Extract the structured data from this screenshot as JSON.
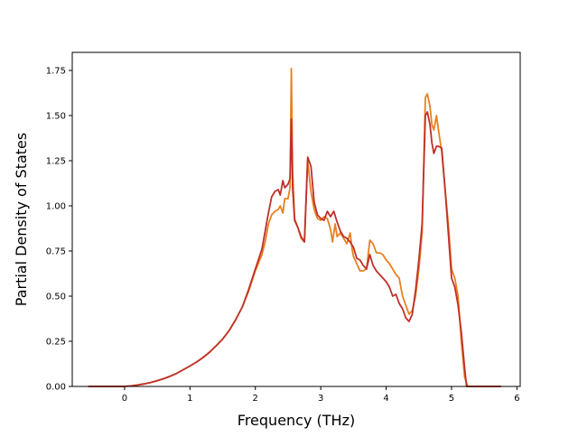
{
  "chart_data": {
    "type": "line",
    "title": "",
    "xlabel": "Frequency (THz)",
    "ylabel": "Partial Density of States",
    "xlim": [
      -0.8,
      6.05
    ],
    "ylim": [
      0,
      1.85
    ],
    "xticks": [
      0,
      1,
      2,
      3,
      4,
      5,
      6
    ],
    "xtick_labels": [
      "0",
      "1",
      "2",
      "3",
      "4",
      "5",
      "6"
    ],
    "yticks": [
      0,
      0.25,
      0.5,
      0.75,
      1.0,
      1.25,
      1.5,
      1.75
    ],
    "ytick_labels": [
      "0.00",
      "0.25",
      "0.50",
      "0.75",
      "1.00",
      "1.25",
      "1.50",
      "1.75"
    ],
    "grid": false,
    "legend": "none",
    "series": [
      {
        "color": "#e8801e",
        "points": [
          [
            -0.55,
            0.0
          ],
          [
            -0.3,
            0.0
          ],
          [
            -0.1,
            0.0
          ],
          [
            0.0,
            0.0
          ],
          [
            0.1,
            0.003
          ],
          [
            0.2,
            0.008
          ],
          [
            0.3,
            0.014
          ],
          [
            0.4,
            0.022
          ],
          [
            0.5,
            0.032
          ],
          [
            0.6,
            0.043
          ],
          [
            0.7,
            0.057
          ],
          [
            0.8,
            0.073
          ],
          [
            0.9,
            0.093
          ],
          [
            1.0,
            0.113
          ],
          [
            1.1,
            0.135
          ],
          [
            1.2,
            0.16
          ],
          [
            1.3,
            0.19
          ],
          [
            1.4,
            0.225
          ],
          [
            1.5,
            0.262
          ],
          [
            1.6,
            0.31
          ],
          [
            1.7,
            0.37
          ],
          [
            1.8,
            0.44
          ],
          [
            1.9,
            0.53
          ],
          [
            2.0,
            0.64
          ],
          [
            2.1,
            0.73
          ],
          [
            2.15,
            0.8
          ],
          [
            2.2,
            0.9
          ],
          [
            2.25,
            0.95
          ],
          [
            2.3,
            0.97
          ],
          [
            2.35,
            0.98
          ],
          [
            2.38,
            1.0
          ],
          [
            2.42,
            0.96
          ],
          [
            2.45,
            1.04
          ],
          [
            2.5,
            1.04
          ],
          [
            2.53,
            1.1
          ],
          [
            2.55,
            1.76
          ],
          [
            2.57,
            1.2
          ],
          [
            2.6,
            0.93
          ],
          [
            2.65,
            0.88
          ],
          [
            2.7,
            0.82
          ],
          [
            2.75,
            0.8
          ],
          [
            2.8,
            1.25
          ],
          [
            2.85,
            1.08
          ],
          [
            2.9,
            0.98
          ],
          [
            2.95,
            0.93
          ],
          [
            3.0,
            0.92
          ],
          [
            3.05,
            0.94
          ],
          [
            3.1,
            0.93
          ],
          [
            3.15,
            0.87
          ],
          [
            3.18,
            0.8
          ],
          [
            3.22,
            0.9
          ],
          [
            3.25,
            0.83
          ],
          [
            3.3,
            0.85
          ],
          [
            3.35,
            0.82
          ],
          [
            3.4,
            0.79
          ],
          [
            3.45,
            0.85
          ],
          [
            3.48,
            0.76
          ],
          [
            3.5,
            0.72
          ],
          [
            3.55,
            0.68
          ],
          [
            3.6,
            0.64
          ],
          [
            3.65,
            0.64
          ],
          [
            3.7,
            0.65
          ],
          [
            3.75,
            0.81
          ],
          [
            3.8,
            0.79
          ],
          [
            3.85,
            0.74
          ],
          [
            3.9,
            0.74
          ],
          [
            3.95,
            0.73
          ],
          [
            4.0,
            0.7
          ],
          [
            4.05,
            0.68
          ],
          [
            4.1,
            0.65
          ],
          [
            4.15,
            0.62
          ],
          [
            4.2,
            0.6
          ],
          [
            4.25,
            0.5
          ],
          [
            4.3,
            0.45
          ],
          [
            4.35,
            0.4
          ],
          [
            4.4,
            0.42
          ],
          [
            4.45,
            0.5
          ],
          [
            4.5,
            0.65
          ],
          [
            4.55,
            0.85
          ],
          [
            4.6,
            1.6
          ],
          [
            4.63,
            1.62
          ],
          [
            4.67,
            1.55
          ],
          [
            4.7,
            1.45
          ],
          [
            4.73,
            1.42
          ],
          [
            4.77,
            1.5
          ],
          [
            4.8,
            1.42
          ],
          [
            4.85,
            1.3
          ],
          [
            4.9,
            1.1
          ],
          [
            4.95,
            0.9
          ],
          [
            5.0,
            0.65
          ],
          [
            5.05,
            0.6
          ],
          [
            5.1,
            0.5
          ],
          [
            5.15,
            0.25
          ],
          [
            5.2,
            0.05
          ],
          [
            5.25,
            0.0
          ],
          [
            5.5,
            0.0
          ],
          [
            5.75,
            0.0
          ]
        ]
      },
      {
        "color": "#c0302a",
        "points": [
          [
            -0.55,
            0.0
          ],
          [
            -0.3,
            0.0
          ],
          [
            -0.1,
            0.0
          ],
          [
            0.0,
            0.0
          ],
          [
            0.1,
            0.003
          ],
          [
            0.2,
            0.008
          ],
          [
            0.3,
            0.014
          ],
          [
            0.4,
            0.022
          ],
          [
            0.5,
            0.032
          ],
          [
            0.6,
            0.043
          ],
          [
            0.7,
            0.057
          ],
          [
            0.8,
            0.073
          ],
          [
            0.9,
            0.093
          ],
          [
            1.0,
            0.113
          ],
          [
            1.1,
            0.135
          ],
          [
            1.2,
            0.16
          ],
          [
            1.3,
            0.19
          ],
          [
            1.4,
            0.225
          ],
          [
            1.5,
            0.262
          ],
          [
            1.6,
            0.31
          ],
          [
            1.7,
            0.37
          ],
          [
            1.8,
            0.44
          ],
          [
            1.9,
            0.54
          ],
          [
            2.0,
            0.65
          ],
          [
            2.1,
            0.76
          ],
          [
            2.15,
            0.86
          ],
          [
            2.2,
            0.96
          ],
          [
            2.25,
            1.05
          ],
          [
            2.3,
            1.08
          ],
          [
            2.35,
            1.09
          ],
          [
            2.38,
            1.06
          ],
          [
            2.42,
            1.14
          ],
          [
            2.45,
            1.1
          ],
          [
            2.5,
            1.12
          ],
          [
            2.53,
            1.15
          ],
          [
            2.55,
            1.48
          ],
          [
            2.57,
            1.1
          ],
          [
            2.6,
            0.92
          ],
          [
            2.65,
            0.88
          ],
          [
            2.7,
            0.83
          ],
          [
            2.75,
            0.8
          ],
          [
            2.8,
            1.27
          ],
          [
            2.85,
            1.22
          ],
          [
            2.9,
            1.02
          ],
          [
            2.95,
            0.95
          ],
          [
            3.0,
            0.93
          ],
          [
            3.05,
            0.92
          ],
          [
            3.1,
            0.97
          ],
          [
            3.15,
            0.94
          ],
          [
            3.2,
            0.97
          ],
          [
            3.25,
            0.91
          ],
          [
            3.3,
            0.86
          ],
          [
            3.35,
            0.83
          ],
          [
            3.4,
            0.82
          ],
          [
            3.45,
            0.8
          ],
          [
            3.5,
            0.77
          ],
          [
            3.55,
            0.71
          ],
          [
            3.6,
            0.7
          ],
          [
            3.65,
            0.67
          ],
          [
            3.7,
            0.65
          ],
          [
            3.75,
            0.73
          ],
          [
            3.8,
            0.67
          ],
          [
            3.85,
            0.64
          ],
          [
            3.9,
            0.62
          ],
          [
            3.95,
            0.6
          ],
          [
            4.0,
            0.58
          ],
          [
            4.05,
            0.55
          ],
          [
            4.1,
            0.5
          ],
          [
            4.15,
            0.51
          ],
          [
            4.2,
            0.46
          ],
          [
            4.25,
            0.43
          ],
          [
            4.3,
            0.38
          ],
          [
            4.35,
            0.36
          ],
          [
            4.4,
            0.4
          ],
          [
            4.45,
            0.53
          ],
          [
            4.5,
            0.7
          ],
          [
            4.55,
            0.9
          ],
          [
            4.6,
            1.5
          ],
          [
            4.63,
            1.52
          ],
          [
            4.67,
            1.45
          ],
          [
            4.7,
            1.35
          ],
          [
            4.73,
            1.29
          ],
          [
            4.77,
            1.33
          ],
          [
            4.8,
            1.33
          ],
          [
            4.85,
            1.32
          ],
          [
            4.9,
            1.1
          ],
          [
            4.95,
            0.85
          ],
          [
            5.0,
            0.6
          ],
          [
            5.05,
            0.55
          ],
          [
            5.1,
            0.45
          ],
          [
            5.15,
            0.3
          ],
          [
            5.2,
            0.1
          ],
          [
            5.23,
            0.0
          ],
          [
            5.5,
            0.0
          ],
          [
            5.75,
            0.0
          ]
        ]
      }
    ]
  }
}
